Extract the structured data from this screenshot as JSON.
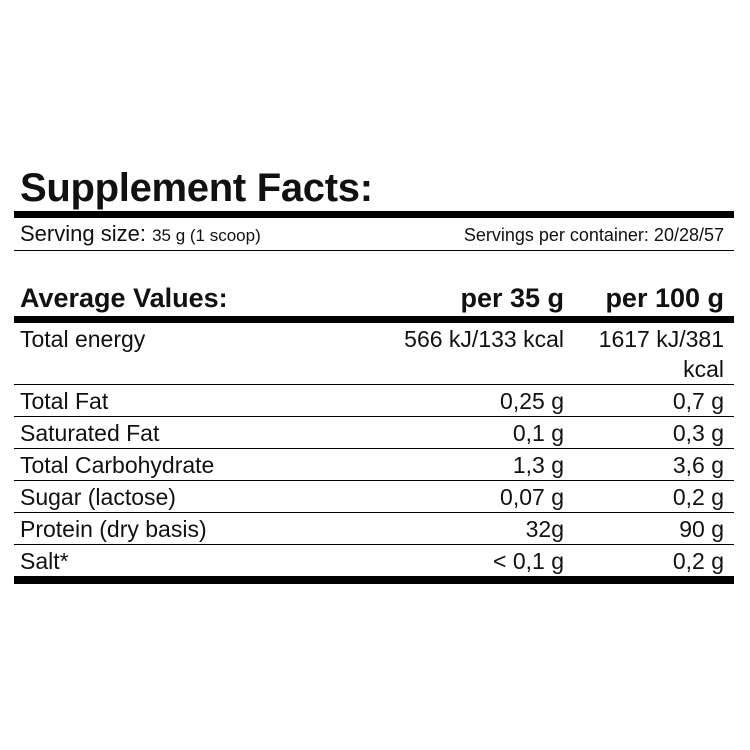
{
  "title": "Supplement Facts:",
  "serving": {
    "size_label": "Serving size:",
    "size_value": "35 g (1 scoop)",
    "per_container": "Servings per container: 20/28/57"
  },
  "table": {
    "header": {
      "name": "Average Values:",
      "col_a": "per 35 g",
      "col_b": "per 100 g"
    },
    "rows": [
      {
        "name": "Total energy",
        "a": "566 kJ/133 kcal",
        "b": "1617 kJ/381 kcal"
      },
      {
        "name": "Total Fat",
        "a": "0,25 g",
        "b": "0,7 g"
      },
      {
        "name": "Saturated Fat",
        "a": "0,1 g",
        "b": "0,3 g"
      },
      {
        "name": "Total Carbohydrate",
        "a": "1,3 g",
        "b": "3,6 g"
      },
      {
        "name": "Sugar (lactose)",
        "a": "0,07 g",
        "b": "0,2 g"
      },
      {
        "name": "Protein (dry basis)",
        "a": "32g",
        "b": "90 g"
      },
      {
        "name": "Salt*",
        "a": "< 0,1 g",
        "b": "0,2 g"
      }
    ]
  }
}
